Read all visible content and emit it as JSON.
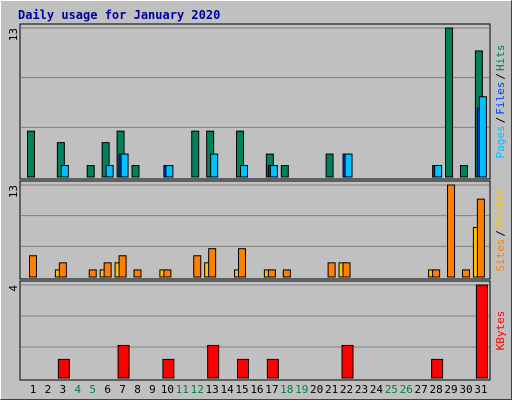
{
  "chart_data": {
    "type": "bar",
    "title": "Daily usage for January 2020",
    "categories": [
      "1",
      "2",
      "3",
      "4",
      "5",
      "6",
      "7",
      "8",
      "9",
      "10",
      "11",
      "12",
      "13",
      "14",
      "15",
      "16",
      "17",
      "18",
      "19",
      "20",
      "21",
      "22",
      "23",
      "24",
      "25",
      "26",
      "27",
      "28",
      "29",
      "30",
      "31"
    ],
    "highlight_categories": [
      "4",
      "5",
      "11",
      "12",
      "18",
      "19",
      "25",
      "26"
    ],
    "highlight_color": "#008040",
    "legend_separator": "/",
    "panels": [
      {
        "ylim": [
          0,
          13
        ],
        "yticks": [
          13
        ],
        "grid_divisions": 3,
        "series": [
          {
            "name": "Hits",
            "color": "#00805c",
            "values": [
              4,
              0,
              3,
              0,
              1,
              3,
              4,
              1,
              0,
              0,
              0,
              4,
              4,
              0,
              4,
              0,
              2,
              1,
              0,
              0,
              2,
              0,
              0,
              0,
              0,
              0,
              0,
              0,
              13,
              1,
              11
            ]
          },
          {
            "name": "Files",
            "color": "#0040ff",
            "values": [
              0,
              0,
              0,
              0,
              0,
              0,
              2,
              0,
              0,
              1,
              0,
              0,
              0,
              0,
              0,
              0,
              1,
              0,
              0,
              0,
              0,
              2,
              0,
              0,
              0,
              0,
              0,
              1,
              0,
              0,
              6
            ]
          },
          {
            "name": "Pages",
            "color": "#00c0ff",
            "values": [
              0,
              0,
              1,
              0,
              0,
              1,
              2,
              0,
              0,
              1,
              0,
              0,
              2,
              0,
              1,
              0,
              1,
              0,
              0,
              0,
              0,
              2,
              0,
              0,
              0,
              0,
              0,
              1,
              0,
              0,
              7
            ]
          }
        ]
      },
      {
        "ylim": [
          0,
          13
        ],
        "yticks": [
          13
        ],
        "grid_divisions": 3,
        "series": [
          {
            "name": "Visits",
            "color": "#ffc000",
            "values": [
              0,
              0,
              1,
              0,
              0,
              1,
              2,
              0,
              0,
              1,
              0,
              0,
              2,
              0,
              1,
              0,
              1,
              0,
              0,
              0,
              0,
              2,
              0,
              0,
              0,
              0,
              0,
              1,
              0,
              0,
              7
            ]
          },
          {
            "name": "Sites",
            "color": "#ff8000",
            "values": [
              3,
              0,
              2,
              0,
              1,
              2,
              3,
              1,
              0,
              1,
              0,
              3,
              4,
              0,
              4,
              0,
              1,
              1,
              0,
              0,
              2,
              2,
              0,
              0,
              0,
              0,
              0,
              1,
              13,
              1,
              11
            ]
          }
        ]
      },
      {
        "ylim": [
          0,
          4
        ],
        "yticks": [
          4
        ],
        "grid_divisions": 3,
        "series": [
          {
            "name": "KBytes",
            "color": "#ff0000",
            "values": [
              0,
              0,
              0.8,
              0,
              0,
              0,
              1.4,
              0,
              0,
              0.8,
              0,
              0,
              1.4,
              0,
              0.8,
              0,
              0.8,
              0,
              0,
              0,
              0,
              1.4,
              0,
              0,
              0,
              0,
              0,
              0.8,
              0,
              0,
              4
            ]
          }
        ]
      }
    ]
  }
}
